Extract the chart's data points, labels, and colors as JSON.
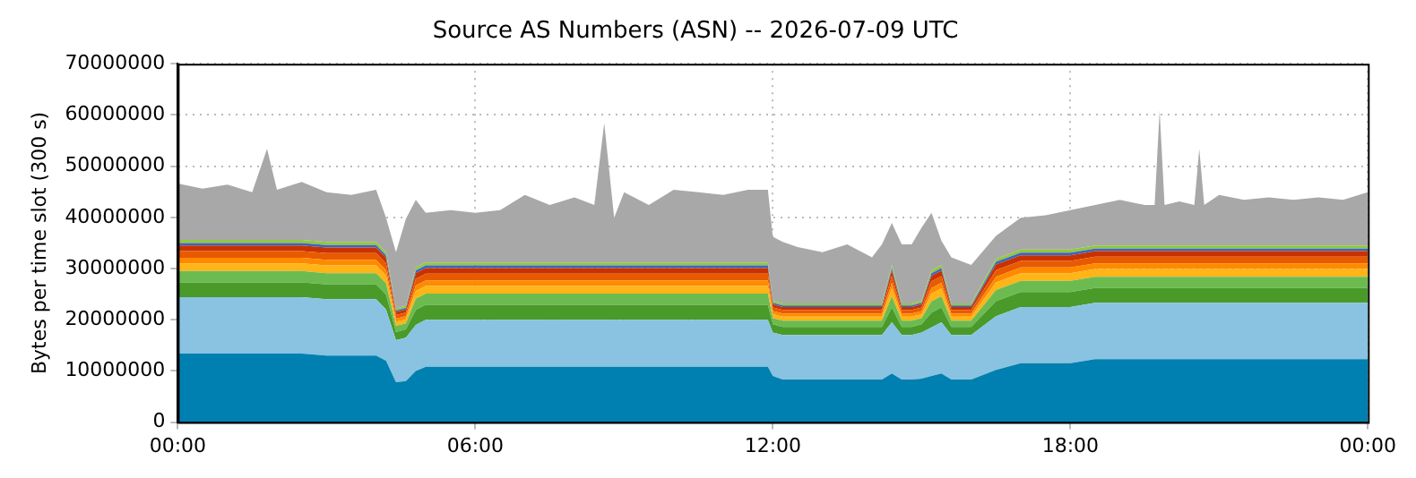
{
  "chart_data": {
    "type": "area",
    "title": "Source AS Numbers (ASN) -- 2026-07-09 UTC",
    "ylabel": "Bytes per time slot (300 s)",
    "stacked": true,
    "grid": true,
    "legend": false,
    "x": [
      0,
      0.5,
      1,
      1.5,
      1.8,
      2,
      2.5,
      3,
      3.5,
      4,
      4.2,
      4.4,
      4.6,
      4.8,
      5,
      5.5,
      6,
      6.5,
      7,
      7.5,
      8,
      8.4,
      8.6,
      8.8,
      9,
      9.5,
      10,
      10.5,
      11,
      11.5,
      11.9,
      12,
      12.2,
      12.5,
      13,
      13.5,
      14,
      14.2,
      14.4,
      14.6,
      14.8,
      15,
      15.2,
      15.4,
      15.6,
      16,
      16.5,
      17,
      17.5,
      18,
      18.5,
      19,
      19.5,
      19.7,
      19.8,
      19.9,
      20.2,
      20.5,
      20.6,
      20.7,
      21,
      21.5,
      22,
      22.5,
      23,
      23.5,
      24
    ],
    "xlim": [
      0,
      24
    ],
    "xticks": [
      {
        "value": 0,
        "label": "00:00"
      },
      {
        "value": 6,
        "label": "06:00"
      },
      {
        "value": 12,
        "label": "12:00"
      },
      {
        "value": 18,
        "label": "18:00"
      },
      {
        "value": 24,
        "label": "00:00"
      }
    ],
    "ylim": [
      0,
      70000000
    ],
    "yticks": [
      0,
      10000000,
      20000000,
      30000000,
      40000000,
      50000000,
      60000000,
      70000000
    ],
    "series": [
      {
        "color": "#0080b0",
        "values": [
          13400000.0,
          13400000.0,
          13400000.0,
          13400000.0,
          13400000.0,
          13400000.0,
          13400000.0,
          13000000.0,
          13000000.0,
          13000000.0,
          12000000.0,
          7800000.0,
          8000000.0,
          10000000.0,
          10800000.0,
          10800000.0,
          10800000.0,
          10800000.0,
          10800000.0,
          10800000.0,
          10800000.0,
          10800000.0,
          10800000.0,
          10800000.0,
          10800000.0,
          10800000.0,
          10800000.0,
          10800000.0,
          10800000.0,
          10800000.0,
          10800000.0,
          9000000.0,
          8300000.0,
          8300000.0,
          8300000.0,
          8300000.0,
          8300000.0,
          8300000.0,
          9500000.0,
          8300000.0,
          8300000.0,
          8500000.0,
          9000000.0,
          9500000.0,
          8300000.0,
          8300000.0,
          10200000.0,
          11500000.0,
          11500000.0,
          11500000.0,
          12300000.0,
          12300000.0,
          12300000.0,
          12300000.0,
          12300000.0,
          12300000.0,
          12300000.0,
          12300000.0,
          12300000.0,
          12300000.0,
          12300000.0,
          12300000.0,
          12300000.0,
          12300000.0,
          12300000.0,
          12300000.0,
          12300000.0
        ]
      },
      {
        "color": "#8ac2e2",
        "values": [
          11000000.0,
          11000000.0,
          11000000.0,
          11000000.0,
          11000000.0,
          11000000.0,
          11000000.0,
          11000000.0,
          11000000.0,
          11000000.0,
          10000000.0,
          8200000.0,
          8500000.0,
          9000000.0,
          9200000.0,
          9200000.0,
          9200000.0,
          9200000.0,
          9200000.0,
          9200000.0,
          9200000.0,
          9200000.0,
          9200000.0,
          9200000.0,
          9200000.0,
          9200000.0,
          9200000.0,
          9200000.0,
          9200000.0,
          9200000.0,
          9200000.0,
          8500000.0,
          8700000.0,
          8700000.0,
          8700000.0,
          8700000.0,
          8700000.0,
          8700000.0,
          10000000.0,
          8700000.0,
          8700000.0,
          9000000.0,
          9500000.0,
          10000000.0,
          8700000.0,
          8700000.0,
          10500000.0,
          11000000.0,
          11000000.0,
          11000000.0,
          11000000.0,
          11000000.0,
          11000000.0,
          11000000.0,
          11000000.0,
          11000000.0,
          11000000.0,
          11000000.0,
          11000000.0,
          11000000.0,
          11000000.0,
          11000000.0,
          11000000.0,
          11000000.0,
          11000000.0,
          11000000.0,
          11000000.0
        ]
      },
      {
        "color": "#4a9a2a",
        "values": [
          2900000.0,
          2900000.0,
          2900000.0,
          2900000.0,
          2900000.0,
          2900000.0,
          2900000.0,
          2900000.0,
          2900000.0,
          2900000.0,
          2900000.0,
          1600000.0,
          1600000.0,
          2900000.0,
          2900000.0,
          2900000.0,
          2900000.0,
          2900000.0,
          2900000.0,
          2900000.0,
          2900000.0,
          2900000.0,
          2900000.0,
          2900000.0,
          2900000.0,
          2900000.0,
          2900000.0,
          2900000.0,
          2900000.0,
          2900000.0,
          2900000.0,
          1600000.0,
          1600000.0,
          1600000.0,
          1600000.0,
          1600000.0,
          1600000.0,
          1600000.0,
          2900000.0,
          1600000.0,
          1600000.0,
          1600000.0,
          2900000.0,
          2900000.0,
          1600000.0,
          1600000.0,
          2900000.0,
          2900000.0,
          2900000.0,
          2900000.0,
          2900000.0,
          2900000.0,
          2900000.0,
          2900000.0,
          2900000.0,
          2900000.0,
          2900000.0,
          2900000.0,
          2900000.0,
          2900000.0,
          2900000.0,
          2900000.0,
          2900000.0,
          2900000.0,
          2900000.0,
          2900000.0,
          2900000.0
        ]
      },
      {
        "color": "#6cbb50",
        "values": [
          2200000.0,
          2200000.0,
          2200000.0,
          2200000.0,
          2200000.0,
          2200000.0,
          2200000.0,
          2200000.0,
          2200000.0,
          2200000.0,
          2200000.0,
          1200000.0,
          1200000.0,
          2200000.0,
          2200000.0,
          2200000.0,
          2200000.0,
          2200000.0,
          2200000.0,
          2200000.0,
          2200000.0,
          2200000.0,
          2200000.0,
          2200000.0,
          2200000.0,
          2200000.0,
          2200000.0,
          2200000.0,
          2200000.0,
          2200000.0,
          2200000.0,
          1200000.0,
          1200000.0,
          1200000.0,
          1200000.0,
          1200000.0,
          1200000.0,
          1200000.0,
          2200000.0,
          1200000.0,
          1200000.0,
          1200000.0,
          2200000.0,
          2200000.0,
          1200000.0,
          1200000.0,
          2200000.0,
          2200000.0,
          2200000.0,
          2200000.0,
          2200000.0,
          2200000.0,
          2200000.0,
          2200000.0,
          2200000.0,
          2200000.0,
          2200000.0,
          2200000.0,
          2200000.0,
          2200000.0,
          2200000.0,
          2200000.0,
          2200000.0,
          2200000.0,
          2200000.0,
          2200000.0,
          2200000.0
        ]
      },
      {
        "color": "#ffb418",
        "values": [
          1500000.0,
          1500000.0,
          1500000.0,
          1500000.0,
          1500000.0,
          1500000.0,
          1500000.0,
          1500000.0,
          1500000.0,
          1500000.0,
          1500000.0,
          800000.0,
          800000.0,
          1500000.0,
          1500000.0,
          1500000.0,
          1500000.0,
          1500000.0,
          1500000.0,
          1500000.0,
          1500000.0,
          1500000.0,
          1500000.0,
          1500000.0,
          1500000.0,
          1500000.0,
          1500000.0,
          1500000.0,
          1500000.0,
          1500000.0,
          1500000.0,
          800000.0,
          800000.0,
          800000.0,
          800000.0,
          800000.0,
          800000.0,
          800000.0,
          1500000.0,
          800000.0,
          800000.0,
          800000.0,
          1500000.0,
          1500000.0,
          800000.0,
          800000.0,
          1500000.0,
          1500000.0,
          1500000.0,
          1500000.0,
          1500000.0,
          1500000.0,
          1500000.0,
          1500000.0,
          1500000.0,
          1500000.0,
          1500000.0,
          1500000.0,
          1500000.0,
          1500000.0,
          1500000.0,
          1500000.0,
          1500000.0,
          1500000.0,
          1500000.0,
          1500000.0,
          1500000.0
        ]
      },
      {
        "color": "#ff8a00",
        "values": [
          1100000.0,
          1100000.0,
          1100000.0,
          1100000.0,
          1100000.0,
          1100000.0,
          1100000.0,
          1100000.0,
          1100000.0,
          1100000.0,
          1100000.0,
          600000.0,
          600000.0,
          1100000.0,
          1100000.0,
          1100000.0,
          1100000.0,
          1100000.0,
          1100000.0,
          1100000.0,
          1100000.0,
          1100000.0,
          1100000.0,
          1100000.0,
          1100000.0,
          1100000.0,
          1100000.0,
          1100000.0,
          1100000.0,
          1100000.0,
          1100000.0,
          600000.0,
          600000.0,
          600000.0,
          600000.0,
          600000.0,
          600000.0,
          600000.0,
          1100000.0,
          600000.0,
          600000.0,
          600000.0,
          1100000.0,
          1100000.0,
          600000.0,
          600000.0,
          1100000.0,
          1100000.0,
          1100000.0,
          1100000.0,
          1100000.0,
          1100000.0,
          1100000.0,
          1100000.0,
          1100000.0,
          1100000.0,
          1100000.0,
          1100000.0,
          1100000.0,
          1100000.0,
          1100000.0,
          1100000.0,
          1100000.0,
          1100000.0,
          1100000.0,
          1100000.0,
          1100000.0
        ]
      },
      {
        "color": "#e85a00",
        "values": [
          1300000.0,
          1300000.0,
          1300000.0,
          1300000.0,
          1300000.0,
          1300000.0,
          1300000.0,
          1300000.0,
          1300000.0,
          1300000.0,
          1300000.0,
          700000.0,
          700000.0,
          1300000.0,
          1300000.0,
          1300000.0,
          1300000.0,
          1300000.0,
          1300000.0,
          1300000.0,
          1300000.0,
          1300000.0,
          1300000.0,
          1300000.0,
          1300000.0,
          1300000.0,
          1300000.0,
          1300000.0,
          1300000.0,
          1300000.0,
          1300000.0,
          700000.0,
          700000.0,
          700000.0,
          700000.0,
          700000.0,
          700000.0,
          700000.0,
          1300000.0,
          700000.0,
          700000.0,
          700000.0,
          1300000.0,
          1300000.0,
          700000.0,
          700000.0,
          1300000.0,
          1300000.0,
          1300000.0,
          1300000.0,
          1300000.0,
          1300000.0,
          1300000.0,
          1300000.0,
          1300000.0,
          1300000.0,
          1300000.0,
          1300000.0,
          1300000.0,
          1300000.0,
          1300000.0,
          1300000.0,
          1300000.0,
          1300000.0,
          1300000.0,
          1300000.0,
          1300000.0
        ]
      },
      {
        "color": "#c83200",
        "values": [
          1100000.0,
          1100000.0,
          1100000.0,
          1100000.0,
          1100000.0,
          1100000.0,
          1100000.0,
          1100000.0,
          1100000.0,
          1100000.0,
          1100000.0,
          600000.0,
          600000.0,
          1100000.0,
          1100000.0,
          1100000.0,
          1100000.0,
          1100000.0,
          1100000.0,
          1100000.0,
          1100000.0,
          1100000.0,
          1100000.0,
          1100000.0,
          1100000.0,
          1100000.0,
          1100000.0,
          1100000.0,
          1100000.0,
          1100000.0,
          1100000.0,
          600000.0,
          600000.0,
          600000.0,
          600000.0,
          600000.0,
          600000.0,
          600000.0,
          1100000.0,
          600000.0,
          600000.0,
          600000.0,
          1100000.0,
          1100000.0,
          600000.0,
          600000.0,
          1100000.0,
          1100000.0,
          1100000.0,
          1100000.0,
          1100000.0,
          1100000.0,
          1100000.0,
          1100000.0,
          1100000.0,
          1100000.0,
          1100000.0,
          1100000.0,
          1100000.0,
          1100000.0,
          1100000.0,
          1100000.0,
          1100000.0,
          1100000.0,
          1100000.0,
          1100000.0,
          1100000.0
        ]
      },
      {
        "color": "#3a64c8",
        "values": [
          500000.0,
          500000.0,
          500000.0,
          500000.0,
          500000.0,
          500000.0,
          500000.0,
          500000.0,
          500000.0,
          500000.0,
          500000.0,
          300000.0,
          300000.0,
          500000.0,
          500000.0,
          500000.0,
          500000.0,
          500000.0,
          500000.0,
          500000.0,
          500000.0,
          500000.0,
          500000.0,
          500000.0,
          500000.0,
          500000.0,
          500000.0,
          500000.0,
          500000.0,
          500000.0,
          500000.0,
          300000.0,
          300000.0,
          300000.0,
          300000.0,
          300000.0,
          300000.0,
          300000.0,
          500000.0,
          300000.0,
          300000.0,
          300000.0,
          500000.0,
          500000.0,
          300000.0,
          300000.0,
          500000.0,
          500000.0,
          500000.0,
          500000.0,
          500000.0,
          500000.0,
          500000.0,
          500000.0,
          500000.0,
          500000.0,
          500000.0,
          500000.0,
          500000.0,
          500000.0,
          500000.0,
          500000.0,
          500000.0,
          500000.0,
          500000.0,
          500000.0,
          500000.0
        ]
      },
      {
        "color": "#90c840",
        "values": [
          600000.0,
          600000.0,
          600000.0,
          600000.0,
          600000.0,
          600000.0,
          600000.0,
          600000.0,
          600000.0,
          600000.0,
          600000.0,
          400000.0,
          400000.0,
          600000.0,
          600000.0,
          600000.0,
          600000.0,
          600000.0,
          600000.0,
          600000.0,
          600000.0,
          600000.0,
          600000.0,
          600000.0,
          600000.0,
          600000.0,
          600000.0,
          600000.0,
          600000.0,
          600000.0,
          600000.0,
          400000.0,
          400000.0,
          400000.0,
          400000.0,
          400000.0,
          400000.0,
          400000.0,
          600000.0,
          400000.0,
          400000.0,
          400000.0,
          600000.0,
          600000.0,
          400000.0,
          400000.0,
          600000.0,
          600000.0,
          600000.0,
          600000.0,
          600000.0,
          600000.0,
          600000.0,
          600000.0,
          600000.0,
          600000.0,
          600000.0,
          600000.0,
          600000.0,
          600000.0,
          600000.0,
          600000.0,
          600000.0,
          600000.0,
          600000.0,
          600000.0,
          600000.0
        ]
      },
      {
        "color": "#a8a8a8",
        "values": [
          11000000.0,
          10000000.0,
          10800000.0,
          9300000.0,
          17800000.0,
          9800000.0,
          11300000.0,
          9700000.0,
          9200000.0,
          10200000.0,
          6700000.0,
          11000000.0,
          17000000.0,
          13200000.0,
          9700000.0,
          10200000.0,
          9700000.0,
          10200000.0,
          13200000.0,
          11200000.0,
          12700000.0,
          11200000.0,
          27200000.0,
          8700000.0,
          13700000.0,
          11200000.0,
          14200000.0,
          13700000.0,
          13200000.0,
          14200000.0,
          14200000.0,
          12500000.0,
          12000000.0,
          11000000.0,
          10000000.0,
          11500000.0,
          9000000.0,
          11500000.0,
          8200000.0,
          11500000.0,
          11500000.0,
          14300000.0,
          11200000.0,
          4700000.0,
          9000000.0,
          7500000.0,
          4500000.0,
          6200000.0,
          6700000.0,
          7700000.0,
          7900000.0,
          8900000.0,
          7900000.0,
          7900000.0,
          26400000.0,
          7900000.0,
          8600000.0,
          7900000.0,
          18900000.0,
          7900000.0,
          9900000.0,
          8900000.0,
          9400000.0,
          8900000.0,
          9400000.0,
          8900000.0,
          10400000.0
        ]
      }
    ]
  }
}
